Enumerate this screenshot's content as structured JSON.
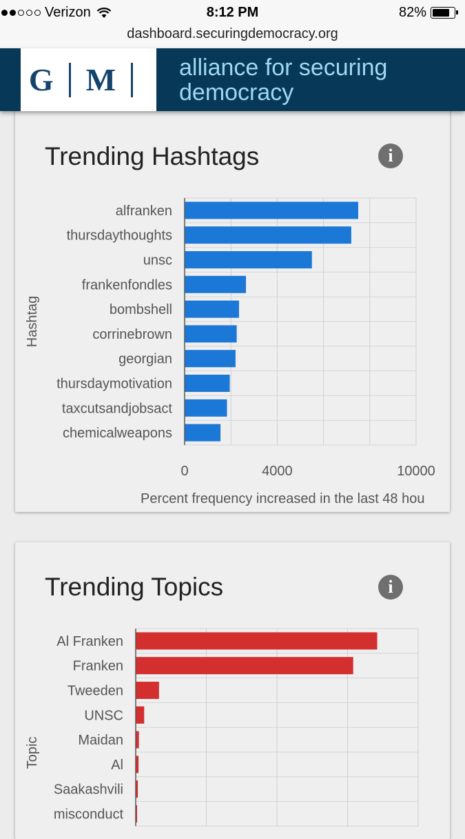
{
  "status_bar": {
    "carrier": "Verizon",
    "time": "8:12 PM",
    "battery": "82%",
    "battery_level": 0.82
  },
  "browser": {
    "url": "dashboard.securingdemocracy.org"
  },
  "header": {
    "logo_left": "G",
    "logo_right": "M",
    "title_line1": "alliance for securing",
    "title_line2": "democracy"
  },
  "colors": {
    "header_bg": "#073857",
    "header_text": "#9fd8f2",
    "hashtag_bar": "#1c78d6",
    "topic_bar": "#d32f2f"
  },
  "hashtags_card": {
    "title": "Trending Hashtags",
    "info_icon": "info-icon"
  },
  "topics_card": {
    "title": "Trending Topics",
    "info_icon": "info-icon"
  },
  "chart_data": [
    {
      "type": "bar",
      "orientation": "horizontal",
      "ylabel": "Hashtag",
      "xlabel": "Percent frequency increased in the last 48 hou",
      "categories": [
        "alfranken",
        "thursdaythoughts",
        "unsc",
        "frankenfondles",
        "bombshell",
        "corrinebrown",
        "georgian",
        "thursdaymotivation",
        "taxcutsandjobsact",
        "chemicalweapons"
      ],
      "values": [
        7500,
        7200,
        5500,
        2650,
        2350,
        2250,
        2200,
        1950,
        1830,
        1550
      ],
      "xlim": [
        0,
        10000
      ],
      "xticks": [
        "0",
        "4000",
        "10000"
      ],
      "grid": true
    },
    {
      "type": "bar",
      "orientation": "horizontal",
      "ylabel": "Topic",
      "categories": [
        "Al Franken",
        "Franken",
        "Tweeden",
        "UNSC",
        "Maidan",
        "Al",
        "Saakashvili",
        "misconduct"
      ],
      "values": [
        3420,
        3080,
        330,
        120,
        45,
        40,
        30,
        20
      ],
      "xlim": [
        0,
        4000
      ],
      "grid": true
    }
  ]
}
